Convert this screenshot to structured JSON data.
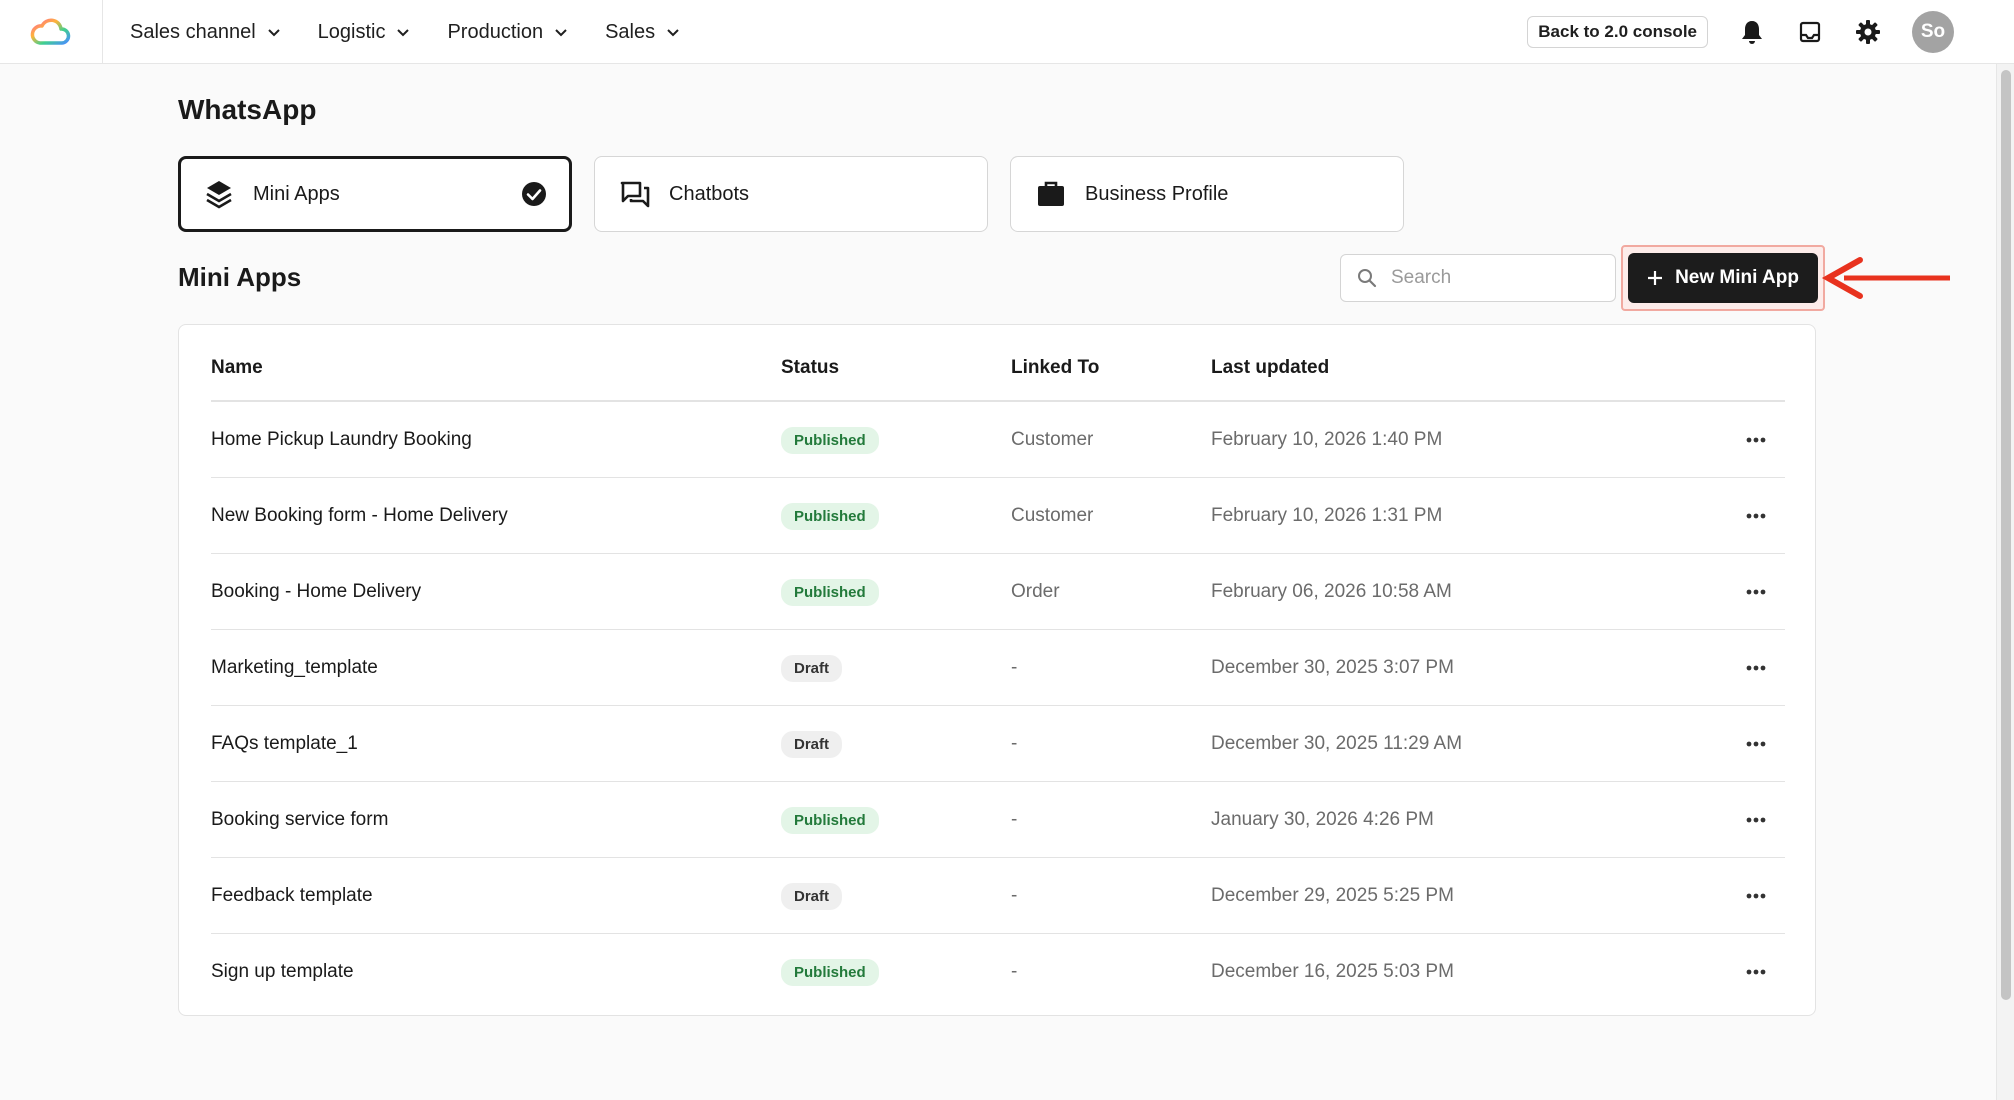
{
  "nav": {
    "items": [
      {
        "label": "Sales channel"
      },
      {
        "label": "Logistic"
      },
      {
        "label": "Production"
      },
      {
        "label": "Sales"
      }
    ],
    "back_console": "Back to 2.0 console",
    "avatar_initials": "So"
  },
  "page": {
    "title": "WhatsApp",
    "tabs": [
      {
        "label": "Mini Apps",
        "icon": "layers-icon",
        "active": true
      },
      {
        "label": "Chatbots",
        "icon": "chat-bubbles-icon",
        "active": false
      },
      {
        "label": "Business Profile",
        "icon": "briefcase-icon",
        "active": false
      }
    ],
    "section_title": "Mini Apps",
    "search_placeholder": "Search",
    "new_button": "New Mini App"
  },
  "table": {
    "headers": {
      "name": "Name",
      "status": "Status",
      "linked": "Linked To",
      "updated": "Last updated"
    },
    "rows": [
      {
        "name": "Home Pickup Laundry Booking",
        "status": "Published",
        "linked": "Customer",
        "updated": "February 10, 2026 1:40 PM"
      },
      {
        "name": "New Booking form - Home Delivery",
        "status": "Published",
        "linked": "Customer",
        "updated": "February 10, 2026 1:31 PM"
      },
      {
        "name": "Booking - Home Delivery",
        "status": "Published",
        "linked": "Order",
        "updated": "February 06, 2026 10:58 AM"
      },
      {
        "name": "Marketing_template",
        "status": "Draft",
        "linked": "-",
        "updated": "December 30, 2025 3:07 PM"
      },
      {
        "name": "FAQs template_1",
        "status": "Draft",
        "linked": "-",
        "updated": "December 30, 2025 11:29 AM"
      },
      {
        "name": "Booking service form",
        "status": "Published",
        "linked": "-",
        "updated": "January 30, 2026 4:26 PM"
      },
      {
        "name": "Feedback template",
        "status": "Draft",
        "linked": "-",
        "updated": "December 29, 2025 5:25 PM"
      },
      {
        "name": "Sign up template",
        "status": "Published",
        "linked": "-",
        "updated": "December 16, 2025 5:03 PM"
      }
    ]
  },
  "colors": {
    "accent_dark": "#1c1c1c",
    "published_bg": "#e3f5e7",
    "published_text": "#237a3b",
    "draft_bg": "#efefef",
    "callout_red": "#e8321e"
  }
}
